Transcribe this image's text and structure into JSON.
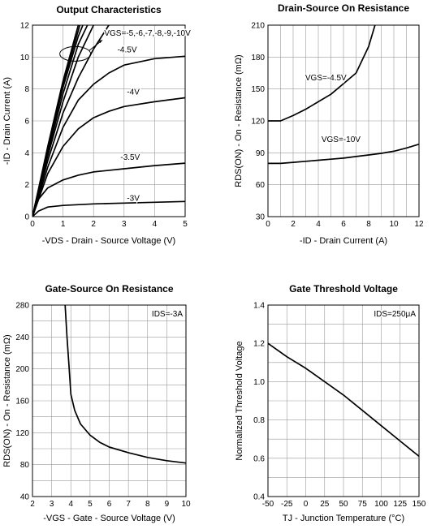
{
  "chart_data": [
    {
      "type": "line",
      "title": "Output Characteristics",
      "xlabel": "-VDS - Drain - Source Voltage (V)",
      "ylabel": "-ID - Drain Current (A)",
      "xlim": [
        0,
        5
      ],
      "ylim": [
        0,
        12
      ],
      "xticks": [
        "0",
        "1",
        "2",
        "3",
        "4",
        "5"
      ],
      "yticks": [
        "0",
        "2",
        "4",
        "6",
        "8",
        "10",
        "12"
      ],
      "grid": true,
      "series": [
        {
          "name": "-3V",
          "x": [
            0,
            0.2,
            0.5,
            1,
            2,
            3,
            4,
            5
          ],
          "y": [
            0,
            0.35,
            0.6,
            0.7,
            0.8,
            0.85,
            0.9,
            0.95
          ]
        },
        {
          "name": "-3.5V",
          "x": [
            0,
            0.2,
            0.5,
            1,
            1.5,
            2,
            3,
            4,
            5
          ],
          "y": [
            0,
            1.1,
            1.8,
            2.3,
            2.6,
            2.8,
            3.0,
            3.2,
            3.35
          ]
        },
        {
          "name": "-4V",
          "x": [
            0,
            0.5,
            1,
            1.5,
            2,
            2.5,
            3,
            4,
            5
          ],
          "y": [
            0,
            2.7,
            4.4,
            5.5,
            6.2,
            6.6,
            6.9,
            7.2,
            7.45
          ]
        },
        {
          "name": "-4.5V",
          "x": [
            0,
            0.5,
            1,
            1.5,
            2,
            2.5,
            3,
            4,
            5
          ],
          "y": [
            0,
            3.1,
            5.6,
            7.3,
            8.3,
            9.0,
            9.5,
            9.9,
            10.05
          ]
        },
        {
          "name": "-5V",
          "x": [
            0,
            0.5,
            1,
            1.5,
            2,
            2.5
          ],
          "y": [
            0,
            3.5,
            6.5,
            8.7,
            10.5,
            12
          ]
        },
        {
          "name": "-6V",
          "x": [
            0,
            0.5,
            1,
            1.5,
            2
          ],
          "y": [
            0,
            3.8,
            7.2,
            10.0,
            12
          ]
        },
        {
          "name": "-7V",
          "x": [
            0,
            0.5,
            1,
            1.5,
            1.8
          ],
          "y": [
            0,
            4.0,
            7.7,
            10.8,
            12
          ]
        },
        {
          "name": "-8V",
          "x": [
            0,
            0.5,
            1,
            1.5,
            1.65
          ],
          "y": [
            0,
            4.2,
            8.1,
            11.3,
            12
          ]
        },
        {
          "name": "-9V",
          "x": [
            0,
            0.5,
            1,
            1.55
          ],
          "y": [
            0,
            4.3,
            8.3,
            12
          ]
        },
        {
          "name": "-10V",
          "x": [
            0,
            0.5,
            1,
            1.5
          ],
          "y": [
            0,
            4.4,
            8.5,
            12
          ]
        }
      ],
      "annotation": "VGS=-5,-6,-7,-8,-9,-10V"
    },
    {
      "type": "line",
      "title": "Drain-Source On Resistance",
      "xlabel": "-ID - Drain Current (A)",
      "ylabel": "RDS(ON) - On - Resistance (mΩ)",
      "xlim": [
        0,
        12
      ],
      "ylim": [
        30,
        210
      ],
      "xticks": [
        "0",
        "2",
        "4",
        "6",
        "8",
        "10",
        "12"
      ],
      "yticks": [
        "30",
        "60",
        "90",
        "120",
        "150",
        "180",
        "210"
      ],
      "grid": true,
      "series": [
        {
          "name": "VGS=-4.5V",
          "x": [
            0,
            1,
            2,
            3,
            4,
            5,
            6,
            7,
            8,
            8.5
          ],
          "y": [
            120,
            120,
            125,
            131,
            138,
            145,
            155,
            165,
            190,
            210
          ]
        },
        {
          "name": "VGS=-10V",
          "x": [
            0,
            1,
            2,
            3,
            4,
            5,
            6,
            7,
            8,
            9,
            10,
            11,
            12
          ],
          "y": [
            80,
            80,
            81,
            82,
            83,
            84,
            85,
            86.5,
            88,
            89.5,
            91.5,
            94.5,
            98
          ]
        }
      ]
    },
    {
      "type": "line",
      "title": "Gate-Source On Resistance",
      "xlabel": "-VGS - Gate - Source Voltage (V)",
      "ylabel": "RDS(ON) - On - Resistance (mΩ)",
      "xlim": [
        2,
        10
      ],
      "ylim": [
        40,
        280
      ],
      "xticks": [
        "2",
        "3",
        "4",
        "5",
        "6",
        "7",
        "8",
        "9",
        "10"
      ],
      "yticks": [
        "40",
        "80",
        "120",
        "160",
        "200",
        "240",
        "280"
      ],
      "grid": true,
      "annotation": "IDS=-3A",
      "series": [
        {
          "name": "",
          "x": [
            3.7,
            3.8,
            3.9,
            4.0,
            4.2,
            4.5,
            5,
            5.5,
            6,
            7,
            8,
            9,
            10
          ],
          "y": [
            280,
            240,
            205,
            168,
            148,
            131,
            117,
            108,
            102,
            95,
            89,
            85,
            82
          ]
        }
      ]
    },
    {
      "type": "line",
      "title": "Gate Threshold Voltage",
      "xlabel": "TJ - Junction Temperature (°C)",
      "ylabel": "Normalized Threshold Voltage",
      "xlim": [
        -50,
        150
      ],
      "ylim": [
        0.4,
        1.4
      ],
      "xticks": [
        "-50",
        "-25",
        "0",
        "25",
        "50",
        "75",
        "100",
        "125",
        "150"
      ],
      "yticks": [
        "0.4",
        "0.6",
        "0.8",
        "1.0",
        "1.2",
        "1.4"
      ],
      "grid": true,
      "annotation": "IDS=250μA",
      "series": [
        {
          "name": "",
          "x": [
            -50,
            -25,
            0,
            25,
            50,
            75,
            100,
            125,
            150
          ],
          "y": [
            1.2,
            1.13,
            1.07,
            1.0,
            0.93,
            0.85,
            0.77,
            0.69,
            0.61
          ]
        }
      ]
    }
  ]
}
